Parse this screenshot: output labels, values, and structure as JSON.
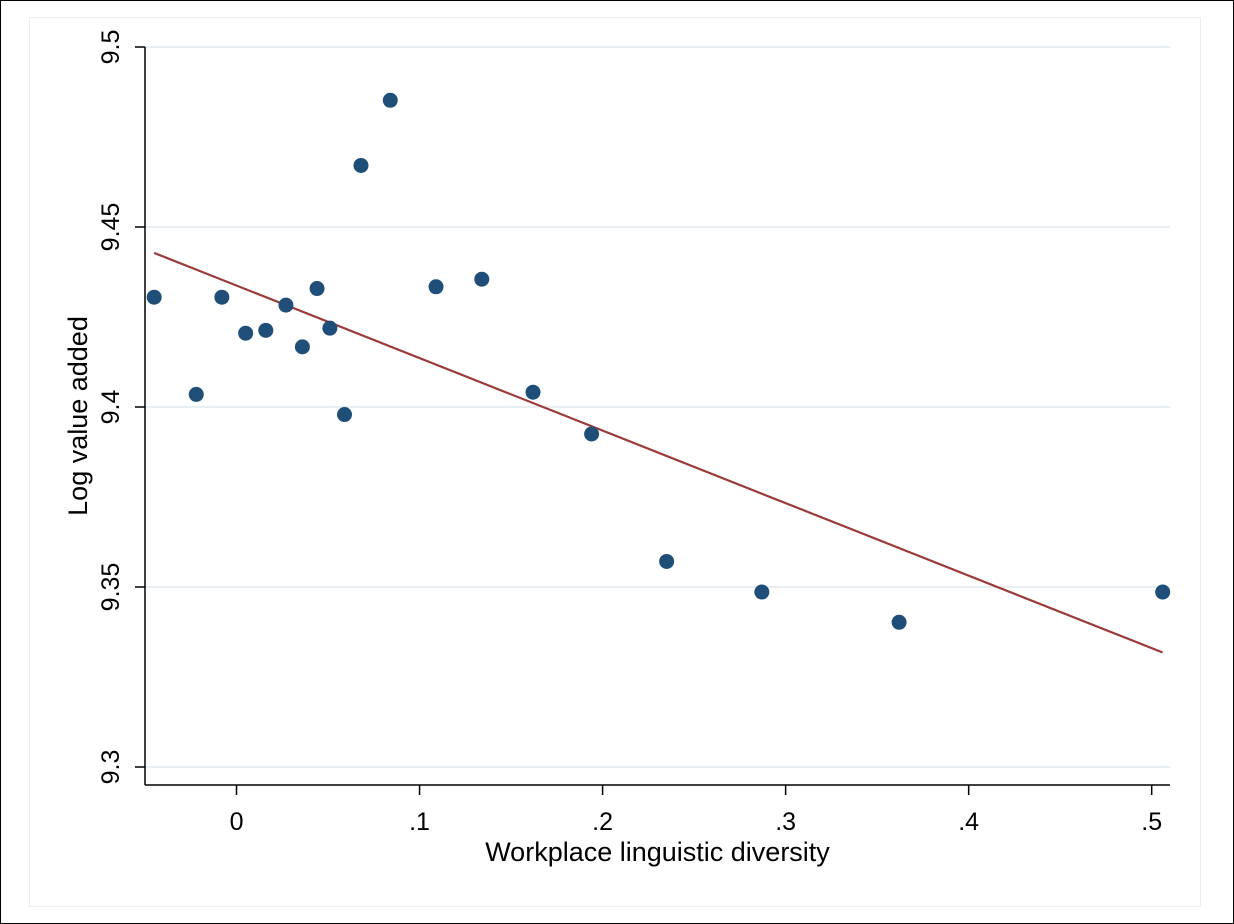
{
  "chart_data": {
    "type": "scatter",
    "xlabel": "Workplace linguistic diversity",
    "ylabel": "Log value added",
    "xlim": [
      -0.05,
      0.51
    ],
    "ylim": [
      9.295,
      9.5
    ],
    "xticks": [
      0,
      0.1,
      0.2,
      0.3,
      0.4,
      0.5
    ],
    "xtick_labels": [
      "0",
      ".1",
      ".2",
      ".3",
      ".4",
      ".5"
    ],
    "yticks": [
      9.3,
      9.35,
      9.4,
      9.45,
      9.5
    ],
    "ytick_labels": [
      "9.3",
      "9.35",
      "9.4",
      "9.45",
      "9.5"
    ],
    "grid": true,
    "points": [
      {
        "x": -0.045,
        "y": 9.4305
      },
      {
        "x": -0.022,
        "y": 9.4035
      },
      {
        "x": -0.008,
        "y": 9.4305
      },
      {
        "x": 0.005,
        "y": 9.4205
      },
      {
        "x": 0.016,
        "y": 9.4213
      },
      {
        "x": 0.027,
        "y": 9.4283
      },
      {
        "x": 0.036,
        "y": 9.4167
      },
      {
        "x": 0.044,
        "y": 9.4329
      },
      {
        "x": 0.051,
        "y": 9.4219
      },
      {
        "x": 0.059,
        "y": 9.3979
      },
      {
        "x": 0.068,
        "y": 9.4671
      },
      {
        "x": 0.084,
        "y": 9.4852
      },
      {
        "x": 0.109,
        "y": 9.4334
      },
      {
        "x": 0.134,
        "y": 9.4355
      },
      {
        "x": 0.162,
        "y": 9.4041
      },
      {
        "x": 0.194,
        "y": 9.3925
      },
      {
        "x": 0.235,
        "y": 9.3571
      },
      {
        "x": 0.287,
        "y": 9.3486
      },
      {
        "x": 0.362,
        "y": 9.3402
      },
      {
        "x": 0.506,
        "y": 9.3486
      }
    ],
    "fit_line": {
      "x": [
        -0.045,
        0.506
      ],
      "y": [
        9.4428,
        9.3318
      ]
    },
    "colors": {
      "marker": "#1f4e79",
      "fit_line": "#9c3a3a",
      "grid": "#e8eef2",
      "axis": "#000000"
    }
  }
}
